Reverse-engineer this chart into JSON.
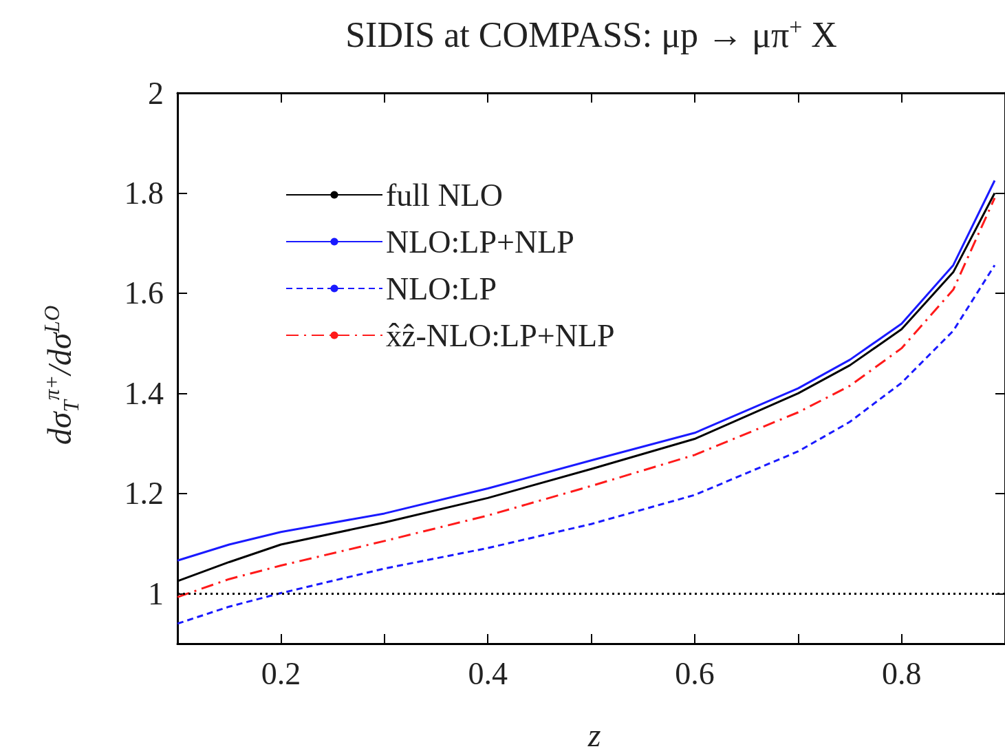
{
  "chart_data": {
    "type": "line",
    "title": "SIDIS at COMPASS: μp → μπ$^{+}$ X",
    "xlabel": "z",
    "ylabel": "dσ$_{T}$$^{π+}$/dσ$^{LO}$",
    "x": [
      0.1,
      0.15,
      0.2,
      0.3,
      0.4,
      0.5,
      0.6,
      0.7,
      0.75,
      0.8,
      0.85,
      0.89
    ],
    "series": [
      {
        "name": "full NLO",
        "color": "#000000",
        "line_style": "solid",
        "values": [
          1.025,
          1.063,
          1.098,
          1.142,
          1.191,
          1.249,
          1.309,
          1.4,
          1.456,
          1.528,
          1.642,
          1.8
        ]
      },
      {
        "name": "NLO:LP+NLP",
        "color": "#1a1aff",
        "line_style": "solid",
        "values": [
          1.066,
          1.098,
          1.123,
          1.16,
          1.21,
          1.266,
          1.321,
          1.41,
          1.467,
          1.539,
          1.656,
          1.825
        ]
      },
      {
        "name": "NLO:LP",
        "color": "#1a1aff",
        "line_style": "dashed",
        "values": [
          0.94,
          0.974,
          1.001,
          1.05,
          1.091,
          1.139,
          1.197,
          1.284,
          1.343,
          1.421,
          1.525,
          1.656
        ]
      },
      {
        "name": "x̂ẑ-NLO:LP+NLP",
        "color": "#ff1a1a",
        "line_style": "dashdot",
        "values": [
          0.993,
          1.029,
          1.056,
          1.105,
          1.156,
          1.215,
          1.277,
          1.362,
          1.415,
          1.49,
          1.607,
          1.79
        ]
      }
    ],
    "xlim": [
      0.1,
      0.9
    ],
    "xticks": [
      {
        "value": 0.1,
        "label": null
      },
      0.2,
      {
        "value": 0.3,
        "label": null
      },
      0.4,
      {
        "value": 0.5,
        "label": null
      },
      0.6,
      {
        "value": 0.7,
        "label": null
      },
      0.8
    ],
    "ylim": [
      0.9,
      2
    ],
    "yticks": [
      1,
      1.2,
      1.4,
      1.6,
      1.8,
      2
    ],
    "ref_lines": [
      {
        "axis": "y",
        "value": 1,
        "color": "#000000",
        "line_style": "dotted"
      }
    ],
    "legend": "top left",
    "marker": "none",
    "grid": false
  }
}
